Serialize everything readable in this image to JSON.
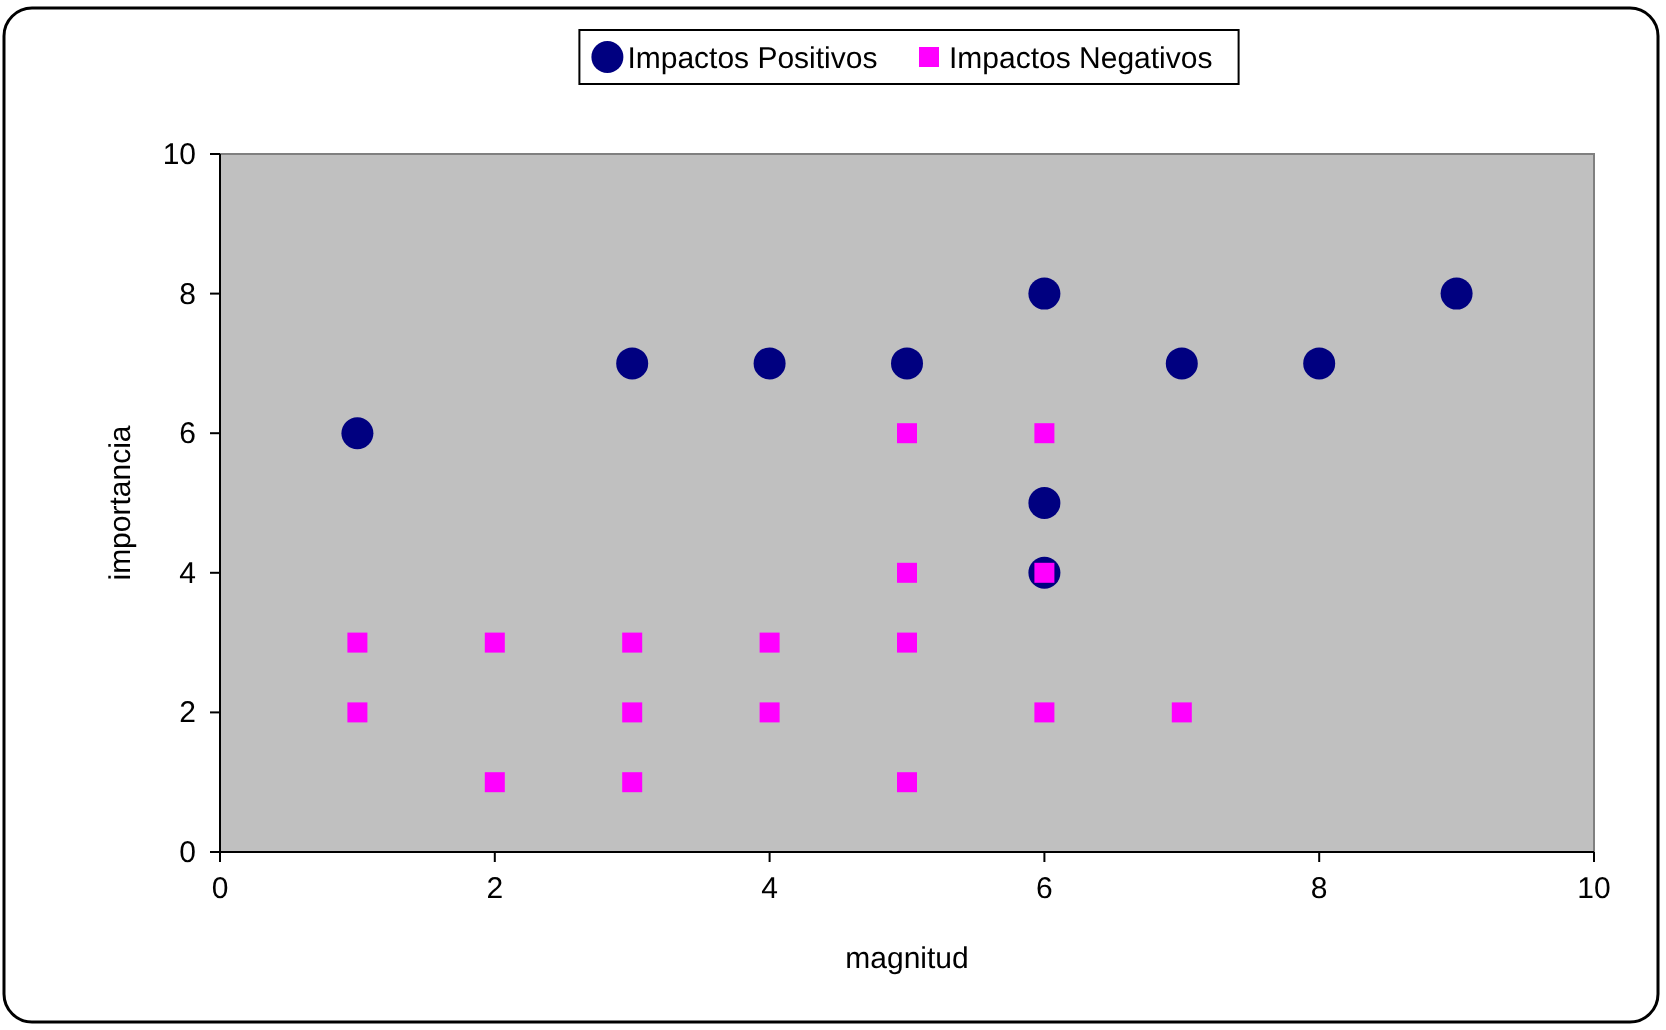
{
  "chart_data": {
    "type": "scatter",
    "xlabel": "magnitud",
    "ylabel": "importancia",
    "xlim": [
      0,
      10
    ],
    "ylim": [
      0,
      10
    ],
    "xticks": [
      0,
      2,
      4,
      6,
      8,
      10
    ],
    "yticks": [
      0,
      2,
      4,
      6,
      8,
      10
    ],
    "grid": false,
    "legend": "top",
    "series": [
      {
        "name": "Impactos Positivos",
        "color": "#000080",
        "marker": "circle",
        "x": [
          1,
          3,
          4,
          5,
          6,
          7,
          8,
          9,
          6,
          6
        ],
        "values": [
          6,
          7,
          7,
          7,
          8,
          7,
          7,
          8,
          5,
          4
        ]
      },
      {
        "name": "Impactos Negativos",
        "color": "#ff00ff",
        "marker": "square",
        "x": [
          1,
          1,
          2,
          2,
          3,
          3,
          3,
          4,
          4,
          5,
          5,
          5,
          5,
          6,
          6,
          6,
          7
        ],
        "values": [
          3,
          2,
          3,
          1,
          3,
          2,
          1,
          3,
          2,
          6,
          4,
          3,
          1,
          6,
          4,
          2,
          2
        ]
      }
    ]
  }
}
